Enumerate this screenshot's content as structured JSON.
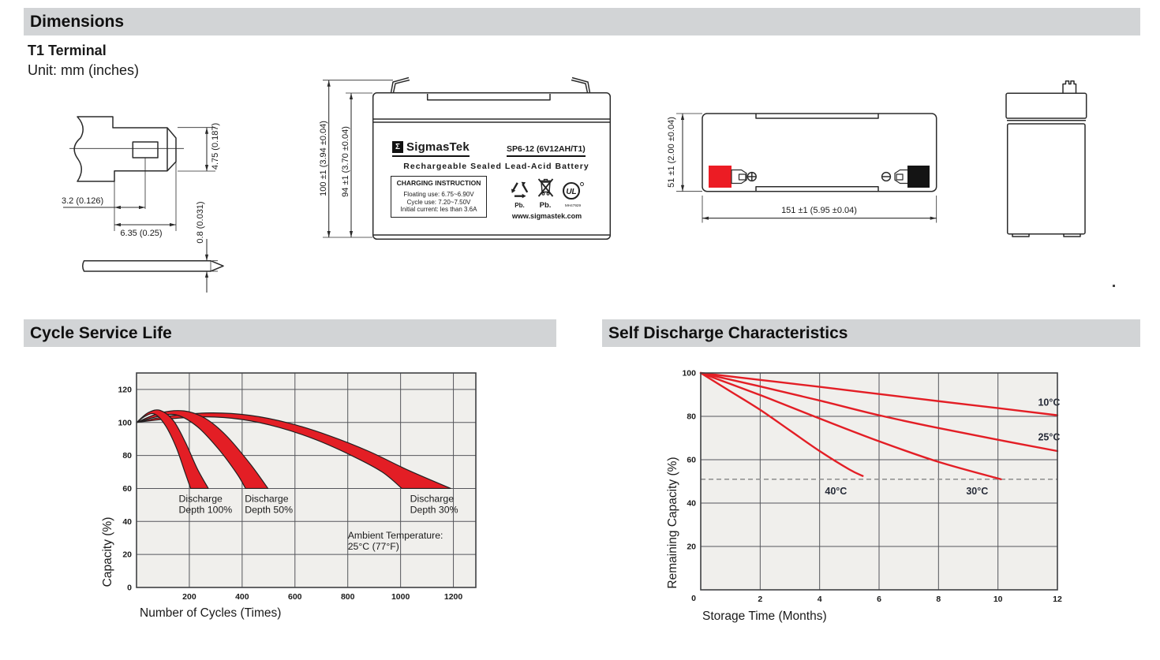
{
  "doc": {
    "sections": {
      "dimensions_title": "Dimensions",
      "cycle_title": "Cycle Service Life",
      "self_discharge_title": "Self Discharge Characteristics"
    },
    "terminal_type": "T1 Terminal",
    "unit_note": "Unit: mm (inches)"
  },
  "drawings": {
    "terminal_detail": {
      "dim_tab_width": "4.75 (0.187)",
      "dim_hole_offset": "3.2 (0.126)",
      "dim_tab_length": "6.35 (0.25)",
      "dim_tab_thickness": "0.8 (0.031)"
    },
    "front_view": {
      "dim_total_height": "100 ±1 (3.94 ±0.04)",
      "dim_case_height": "94 ±1 (3.70 ±0.04)"
    },
    "top_view": {
      "dim_width": "51 ±1 (2.00 ±0.04)",
      "dim_length": "151 ±1 (5.95 ±0.04)"
    },
    "label": {
      "sigma": "Σ",
      "brand": "SigmasTek",
      "model": "SP6-12 (6V12AH/T1)",
      "subtitle": "Rechargeable Sealed Lead-Acid Battery",
      "charging_title": "CHARGING INSTRUCTION",
      "charging_lines": [
        "Floating use: 6.75~6.90V",
        "Cycle use: 7.20~7.50V",
        "Initial current: les than 3.6A"
      ],
      "pb_recycle": "Pb.",
      "pb_bin": "Pb.",
      "ul_text": "UL",
      "ul_code": "MH47929",
      "website": "www.sigmastek.com"
    }
  },
  "icons": {
    "positive_terminal": "circle-plus",
    "negative_terminal": "circle-minus",
    "recycle": "recycle-arrows",
    "weee": "crossed-out-bin",
    "ul": "UL-certification-mark"
  },
  "colors": {
    "section_bar": "#d2d4d6",
    "accent_red": "#e31e25",
    "grid": "#55565b",
    "plot_bg": "#f0efec",
    "dashed_guide": "#8c8c8c",
    "terminal_positive": "#ec1c24",
    "terminal_negative": "#141414"
  },
  "chart_data": [
    {
      "id": "cycle",
      "type": "area",
      "title": "Cycle Service Life",
      "xlabel": "Number of Cycles (Times)",
      "ylabel": "Capacity (%)",
      "xlim": [
        0,
        1285
      ],
      "ylim": [
        0,
        130
      ],
      "xticks": [
        200,
        400,
        600,
        800,
        1000,
        1200
      ],
      "yticks": [
        0,
        20,
        40,
        60,
        80,
        100,
        120
      ],
      "grid": true,
      "legend_position": "none",
      "bands": [
        {
          "name": "Discharge Depth 30%",
          "upper": [
            [
              0,
              100
            ],
            [
              120,
              103.8
            ],
            [
              280,
              105.8
            ],
            [
              430,
              104.3
            ],
            [
              580,
              99.5
            ],
            [
              730,
              92
            ],
            [
              880,
              82.5
            ],
            [
              1030,
              71
            ],
            [
              1190,
              60
            ]
          ],
          "lower": [
            [
              0,
              100
            ],
            [
              110,
              102
            ],
            [
              260,
              103.4
            ],
            [
              400,
              101.8
            ],
            [
              540,
              97
            ],
            [
              680,
              89.5
            ],
            [
              820,
              79.5
            ],
            [
              930,
              70
            ],
            [
              1005,
              60
            ]
          ]
        },
        {
          "name": "Discharge Depth 50%",
          "upper": [
            [
              0,
              100
            ],
            [
              90,
              105.8
            ],
            [
              180,
              107
            ],
            [
              260,
              102.5
            ],
            [
              340,
              92
            ],
            [
              430,
              75
            ],
            [
              498,
              60
            ]
          ],
          "lower": [
            [
              0,
              100
            ],
            [
              70,
              103.2
            ],
            [
              150,
              104.6
            ],
            [
              230,
              97.5
            ],
            [
              310,
              84
            ],
            [
              380,
              69
            ],
            [
              413,
              60
            ]
          ]
        },
        {
          "name": "Discharge Depth 100%",
          "upper": [
            [
              0,
              100
            ],
            [
              45,
              106
            ],
            [
              90,
              107.3
            ],
            [
              140,
              101
            ],
            [
              185,
              88
            ],
            [
              230,
              72
            ],
            [
              272,
              60
            ]
          ],
          "lower": [
            [
              0,
              100
            ],
            [
              35,
              104
            ],
            [
              70,
              105
            ],
            [
              110,
              98
            ],
            [
              150,
              85
            ],
            [
              183,
              70
            ],
            [
              205,
              60
            ]
          ]
        }
      ],
      "annotations": [
        {
          "x": 160,
          "y": 57,
          "lines": [
            "Discharge",
            "Depth 100%"
          ]
        },
        {
          "x": 410,
          "y": 57,
          "lines": [
            "Discharge",
            "Depth 50%"
          ]
        },
        {
          "x": 1036,
          "y": 57,
          "lines": [
            "Discharge",
            "Depth 30%"
          ]
        },
        {
          "x": 800,
          "y": 35,
          "lines": [
            "Ambient Temperature:",
            "25°C (77°F)"
          ]
        }
      ]
    },
    {
      "id": "selfdc",
      "type": "line",
      "title": "Self Discharge Characteristics",
      "xlabel": "Storage Time (Months)",
      "ylabel": "Remaining Capacity (%)",
      "xlim": [
        0,
        12
      ],
      "ylim": [
        0,
        100
      ],
      "xticks": [
        2,
        4,
        6,
        8,
        10,
        12
      ],
      "yticks": [
        20,
        40,
        60,
        80,
        100
      ],
      "origin_label": "0",
      "dashed_guide_y": 51,
      "grid": true,
      "series": [
        {
          "name": "10°C",
          "points": [
            [
              0,
              100
            ],
            [
              2,
              96.8
            ],
            [
              4,
              93.6
            ],
            [
              6,
              90.3
            ],
            [
              8,
              87
            ],
            [
              10,
              83.8
            ],
            [
              12,
              80.5
            ]
          ],
          "label_at": [
            11.72,
            85
          ]
        },
        {
          "name": "25°C",
          "points": [
            [
              0,
              100
            ],
            [
              2,
              93.8
            ],
            [
              4,
              87.3
            ],
            [
              6,
              80.5
            ],
            [
              8,
              74.6
            ],
            [
              10,
              69.2
            ],
            [
              12,
              64
            ]
          ],
          "label_at": [
            11.72,
            69
          ]
        },
        {
          "name": "30°C",
          "points": [
            [
              0,
              100
            ],
            [
              2,
              89.8
            ],
            [
              4,
              79
            ],
            [
              6,
              68.5
            ],
            [
              8,
              59
            ],
            [
              10.1,
              51
            ]
          ],
          "label_at": [
            9.3,
            44
          ]
        },
        {
          "name": "40°C",
          "points": [
            [
              0,
              100
            ],
            [
              1,
              91.5
            ],
            [
              2,
              83
            ],
            [
              3,
              73.5
            ],
            [
              4,
              64
            ],
            [
              5,
              55.5
            ],
            [
              5.45,
              52.5
            ]
          ],
          "label_at": [
            4.55,
            44
          ]
        }
      ]
    }
  ]
}
